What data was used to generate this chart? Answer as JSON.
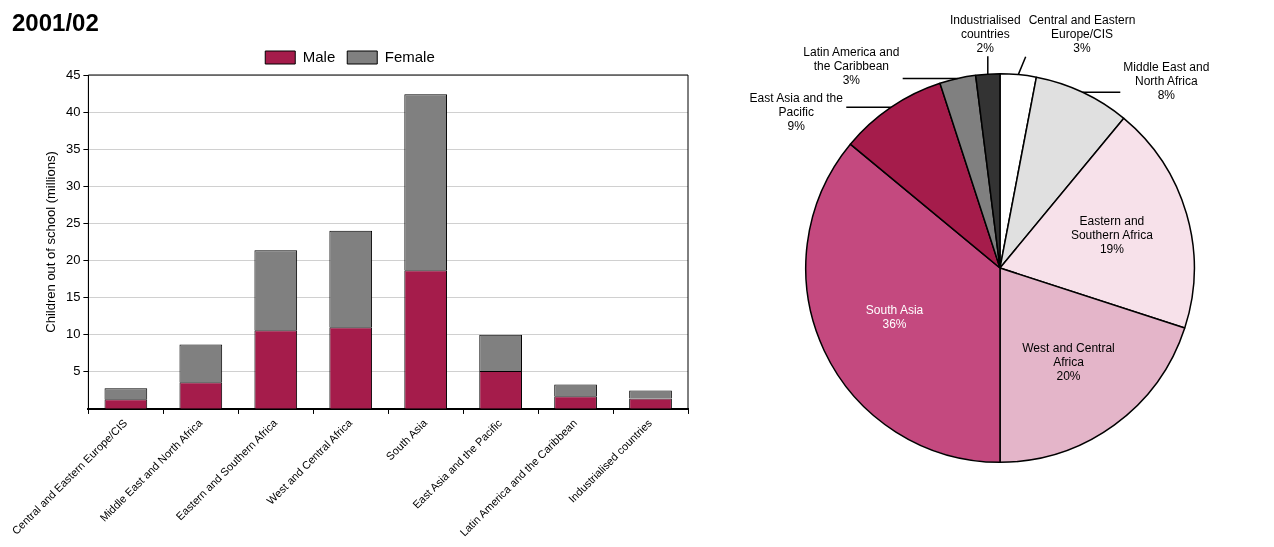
{
  "chart_data": [
    {
      "type": "bar",
      "annotations": [
        "2001/02"
      ],
      "ylabel": "Children out of school (millions)",
      "categories": [
        "Central and Eastern Europe/CIS",
        "Middle East and North Africa",
        "Eastern and Southern Africa",
        "West and Central Africa",
        "South Asia",
        "East Asia and the Pacific",
        "Latin America and the Caribbean",
        "Industrialised countries"
      ],
      "series": [
        {
          "name": "Male",
          "color": "#a51c4b",
          "values": [
            1.3,
            3.6,
            10.6,
            11.0,
            18.7,
            5.1,
            1.7,
            1.4
          ]
        },
        {
          "name": "Female",
          "color": "#808080",
          "values": [
            1.5,
            5.1,
            10.8,
            13.0,
            23.7,
            4.9,
            1.6,
            1.1
          ]
        }
      ],
      "stacked": true,
      "ylim": [
        0,
        45
      ],
      "yticks": [
        5,
        10,
        15,
        20,
        25,
        30,
        35,
        40,
        45
      ],
      "grid": "y",
      "legend": "top"
    },
    {
      "type": "pie",
      "categories": [
        "Central and Eastern Europe/CIS",
        "Middle East and North Africa",
        "Eastern and Southern Africa",
        "West and Central Africa",
        "South Asia",
        "East Asia and the Pacific",
        "Latin America and the Caribbean",
        "Industrialised countries"
      ],
      "values": [
        3,
        8,
        19,
        20,
        36,
        9,
        3,
        2
      ],
      "value_labels": [
        "3%",
        "8%",
        "19%",
        "20%",
        "36%",
        "9%",
        "3%",
        "2%"
      ],
      "colors": [
        "#ffffff",
        "#e0e0e0",
        "#f7e1ea",
        "#e4b5c9",
        "#c4497f",
        "#a51c4b",
        "#808080",
        "#333333"
      ]
    }
  ]
}
